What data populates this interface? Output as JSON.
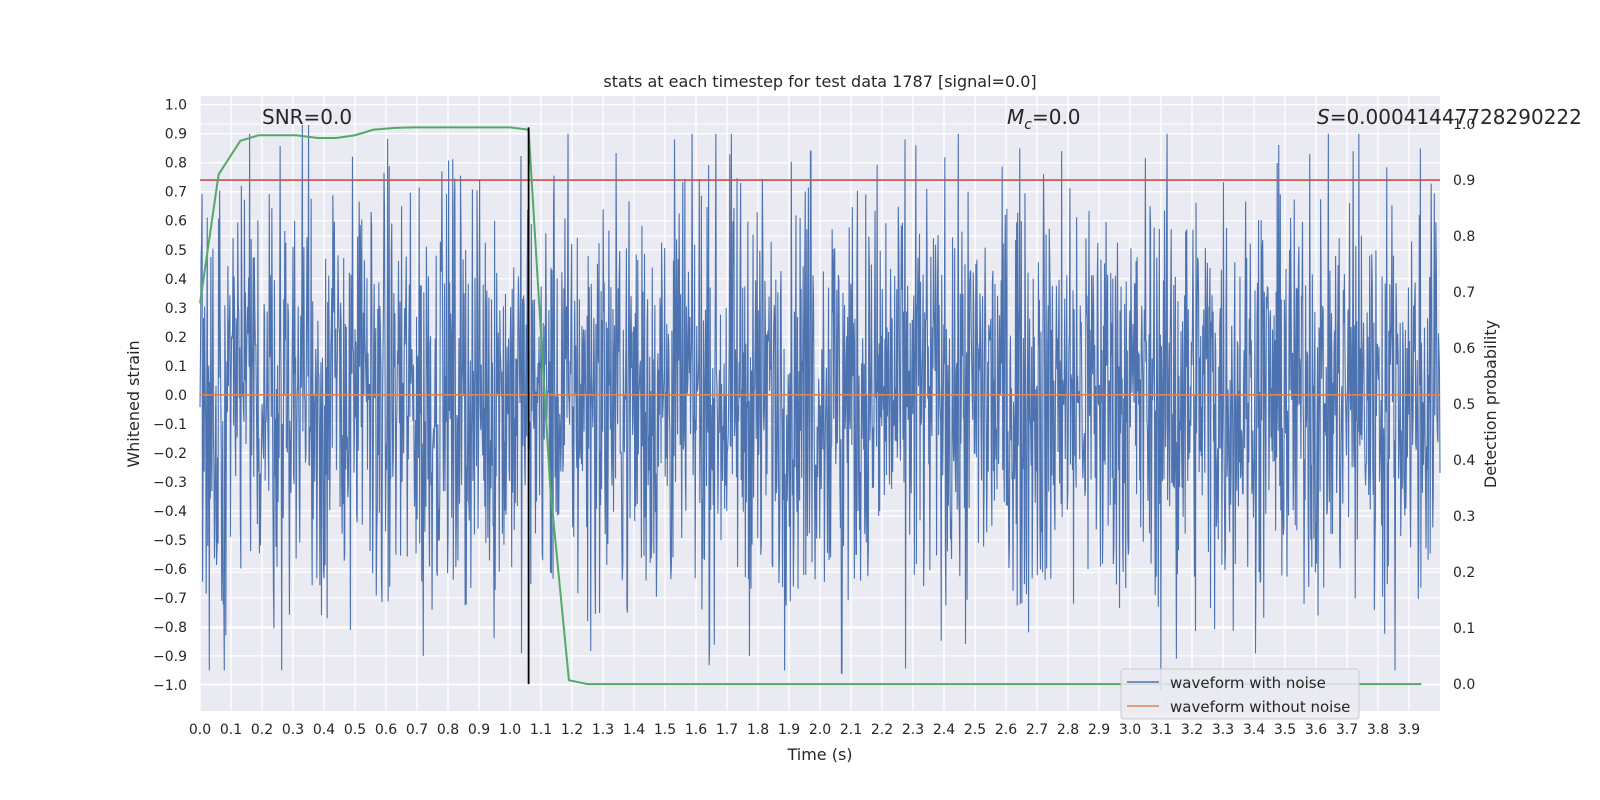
{
  "chart_data": {
    "type": "line",
    "title": "stats at each timestep for test data 1787 [signal=0.0]",
    "xlabel": "Time (s)",
    "ylabel": "Whitened strain",
    "y2label": "Detection probability",
    "xlim": [
      0.0,
      4.0
    ],
    "ylim": [
      -1.09,
      1.03
    ],
    "y2lim": [
      -0.048,
      1.05
    ],
    "xticks": [
      "0.0",
      "0.1",
      "0.2",
      "0.3",
      "0.4",
      "0.5",
      "0.6",
      "0.7",
      "0.8",
      "0.9",
      "1.0",
      "1.1",
      "1.2",
      "1.3",
      "1.4",
      "1.5",
      "1.6",
      "1.7",
      "1.8",
      "1.9",
      "2.0",
      "2.1",
      "2.2",
      "2.3",
      "2.4",
      "2.5",
      "2.6",
      "2.7",
      "2.8",
      "2.9",
      "3.0",
      "3.1",
      "3.2",
      "3.3",
      "3.4",
      "3.5",
      "3.6",
      "3.7",
      "3.8",
      "3.9"
    ],
    "yticks": [
      "1.0",
      "0.9",
      "0.8",
      "0.7",
      "0.6",
      "0.5",
      "0.4",
      "0.3",
      "0.2",
      "0.1",
      "0.0",
      "−0.1",
      "−0.2",
      "−0.3",
      "−0.4",
      "−0.5",
      "−0.6",
      "−0.7",
      "−0.8",
      "−0.9",
      "−1.0"
    ],
    "y2ticks": [
      "1.0",
      "0.9",
      "0.8",
      "0.7",
      "0.6",
      "0.5",
      "0.4",
      "0.3",
      "0.2",
      "0.1",
      "0.0"
    ],
    "annotations": {
      "snr": "SNR=0.0",
      "mc_symbol": "M",
      "mc_sub": "c",
      "mc_value": "=0.0",
      "s_symbol": "S",
      "s_value": "=0.00041447728290222"
    },
    "series": [
      {
        "name": "waveform with noise",
        "color": "#4c72b0",
        "axis": "left",
        "peaks": [
          {
            "t": 0.33,
            "v": 0.93
          },
          {
            "t": 0.35,
            "v": 0.93
          },
          {
            "t": 0.78,
            "v": 0.77
          },
          {
            "t": 1.53,
            "v": 0.88
          },
          {
            "t": 1.97,
            "v": 0.84
          },
          {
            "t": 2.31,
            "v": 0.86
          },
          {
            "t": 2.78,
            "v": 0.84
          },
          {
            "t": 3.58,
            "v": 0.83
          },
          {
            "t": 3.72,
            "v": 0.84
          },
          {
            "t": 0.07,
            "v": -0.71
          },
          {
            "t": 0.72,
            "v": -0.9
          },
          {
            "t": 2.07,
            "v": -0.96
          },
          {
            "t": 3.1,
            "v": -1.02
          },
          {
            "t": 3.15,
            "v": -0.91
          },
          {
            "t": 0.41,
            "v": -0.77
          },
          {
            "t": 1.25,
            "v": -0.78
          }
        ]
      },
      {
        "name": "waveform without noise",
        "color": "#dd8452",
        "axis": "left",
        "values": [
          0.0,
          0.0
        ]
      },
      {
        "name": "detection probability",
        "color": "#55a868",
        "axis": "right",
        "x": [
          0.0,
          0.06,
          0.13,
          0.19,
          0.25,
          0.31,
          0.38,
          0.44,
          0.5,
          0.56,
          0.63,
          0.69,
          0.75,
          0.81,
          0.88,
          0.94,
          1.0,
          1.06,
          1.13,
          1.19,
          1.25,
          1.31,
          3.94
        ],
        "y": [
          0.68,
          0.91,
          0.97,
          0.98,
          0.98,
          0.98,
          0.975,
          0.975,
          0.98,
          0.99,
          0.993,
          0.994,
          0.994,
          0.994,
          0.994,
          0.994,
          0.994,
          0.99,
          0.35,
          0.007,
          0.0,
          0.0,
          0.0
        ]
      }
    ],
    "threshold": {
      "value": 0.9,
      "axis": "right",
      "color": "#c44e52"
    },
    "trigger_time": 1.06,
    "legend": {
      "position": "bottom-right",
      "entries": [
        "waveform with noise",
        "waveform without noise"
      ]
    }
  }
}
